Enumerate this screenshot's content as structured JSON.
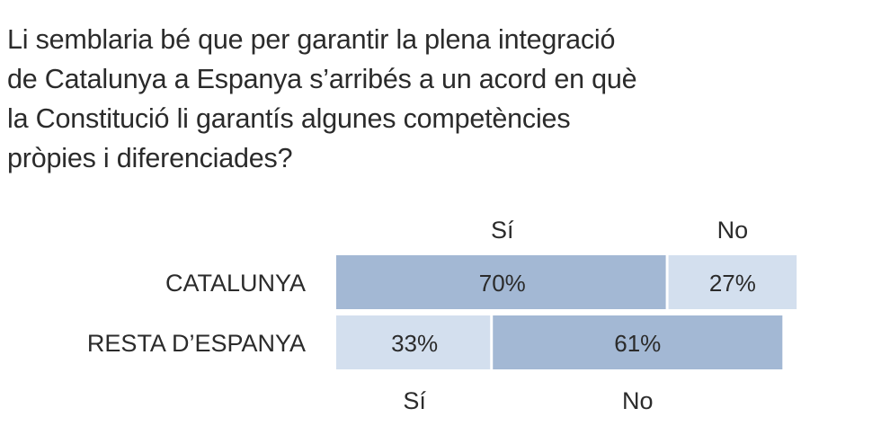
{
  "question": {
    "lines": [
      "Li semblaria bé que per garantir la plena integració",
      "de Catalunya a Espanya s’arribés a un acord en què",
      "la Constitució li garantís algunes competències",
      "pròpies i diferenciades?"
    ]
  },
  "chart_data": {
    "type": "bar",
    "orientation": "horizontal-stacked",
    "title": "Li semblaria bé que per garantir la plena integració de Catalunya a Espanya s’arribés a un acord en què la Constitució li garantís algunes competències pròpies i diferenciades?",
    "categories": [
      "CATALUNYA",
      "RESTA D’ESPANYA"
    ],
    "series": [
      {
        "name": "Sí",
        "values": [
          70,
          33
        ]
      },
      {
        "name": "No",
        "values": [
          27,
          61
        ]
      }
    ],
    "value_labels": [
      {
        "category": "CATALUNYA",
        "series": "Sí",
        "label": "70%"
      },
      {
        "category": "CATALUNYA",
        "series": "No",
        "label": "27%"
      },
      {
        "category": "RESTA D’ESPANYA",
        "series": "Sí",
        "label": "33%"
      },
      {
        "category": "RESTA D’ESPANYA",
        "series": "No",
        "label": "61%"
      }
    ],
    "segment_labels_top": [
      "Sí",
      "No"
    ],
    "segment_labels_bottom": [
      "Sí",
      "No"
    ],
    "unit": "%",
    "xlim": [
      0,
      100
    ],
    "colors": {
      "majority": "#a3b8d4",
      "minority": "#d3dfee",
      "text": "#2b2b2b"
    }
  }
}
